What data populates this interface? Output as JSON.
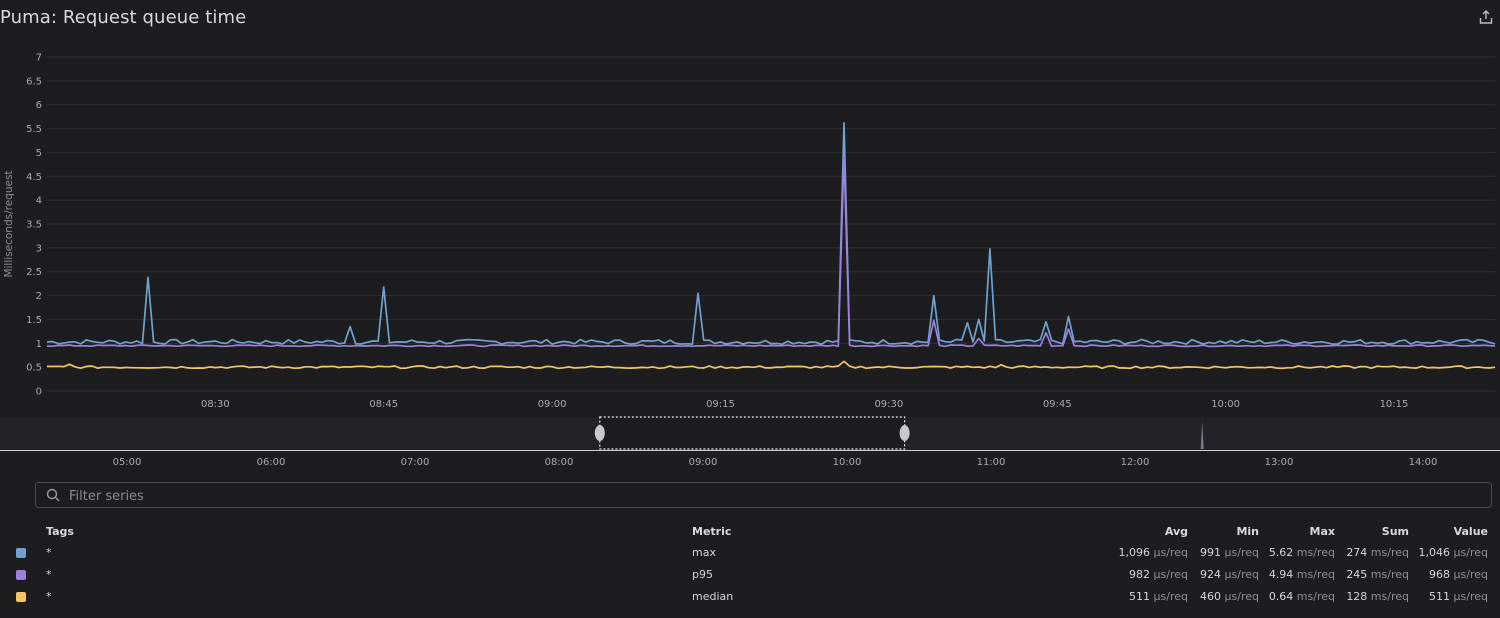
{
  "title": "Puma: Request queue time",
  "share_icon": "share-icon",
  "filter": {
    "placeholder": "Filter series",
    "value": ""
  },
  "chart_data": {
    "type": "line",
    "ylabel": "Milliseconds/request",
    "ylim": [
      0,
      7
    ],
    "y_ticks": [
      "0",
      "0.5",
      "1",
      "1.5",
      "2",
      "2.5",
      "3",
      "3.5",
      "4",
      "4.5",
      "5",
      "5.5",
      "6",
      "6.5",
      "7"
    ],
    "x_range_minutes": [
      "08:15",
      "10:24"
    ],
    "x_ticks": [
      "08:30",
      "08:45",
      "09:00",
      "09:15",
      "09:30",
      "09:45",
      "10:00",
      "10:15"
    ],
    "grid": true,
    "series": [
      {
        "name": "max",
        "color": "#6fa2d1",
        "base": 1.03,
        "jitter": 0.05,
        "spikes": [
          [
            "08:24",
            2.38
          ],
          [
            "08:42",
            1.35
          ],
          [
            "08:45",
            2.18
          ],
          [
            "09:13",
            2.05
          ],
          [
            "09:26",
            5.62
          ],
          [
            "09:34",
            2.0
          ],
          [
            "09:36",
            1.08
          ],
          [
            "09:37",
            1.43
          ],
          [
            "09:38",
            1.5
          ],
          [
            "09:39",
            2.98
          ],
          [
            "09:44",
            1.45
          ],
          [
            "09:46",
            1.56
          ]
        ]
      },
      {
        "name": "p95",
        "color": "#9d7fdc",
        "base": 0.95,
        "jitter": 0.015,
        "spikes": [
          [
            "09:26",
            4.94
          ],
          [
            "09:34",
            1.48
          ],
          [
            "09:38",
            1.1
          ],
          [
            "09:44",
            1.22
          ],
          [
            "09:46",
            1.3
          ]
        ]
      },
      {
        "name": "median",
        "color": "#f5c563",
        "base": 0.5,
        "jitter": 0.025,
        "spikes": [
          [
            "09:26",
            0.62
          ],
          [
            "08:17",
            0.56
          ],
          [
            "09:40",
            0.55
          ]
        ]
      }
    ]
  },
  "overview": {
    "x_ticks": [
      "05:00",
      "06:00",
      "07:00",
      "08:00",
      "09:00",
      "10:00",
      "11:00",
      "12:00",
      "13:00",
      "14:00"
    ],
    "selection": [
      "08:17",
      "10:24"
    ],
    "marker": "12:28"
  },
  "legend": {
    "headers": {
      "tags": "Tags",
      "metric": "Metric",
      "avg": "Avg",
      "min": "Min",
      "max": "Max",
      "sum": "Sum",
      "value": "Value"
    },
    "rows": [
      {
        "color": "#6fa2d1",
        "tags": "*",
        "metric": "max",
        "avg": "1,096",
        "avg_u": "µs/req",
        "min": "991",
        "min_u": "µs/req",
        "max": "5.62",
        "max_u": "ms/req",
        "sum": "274",
        "sum_u": "ms/req",
        "value": "1,046",
        "value_u": "µs/req"
      },
      {
        "color": "#9d7fdc",
        "tags": "*",
        "metric": "p95",
        "avg": "982",
        "avg_u": "µs/req",
        "min": "924",
        "min_u": "µs/req",
        "max": "4.94",
        "max_u": "ms/req",
        "sum": "245",
        "sum_u": "ms/req",
        "value": "968",
        "value_u": "µs/req"
      },
      {
        "color": "#f5c563",
        "tags": "*",
        "metric": "median",
        "avg": "511",
        "avg_u": "µs/req",
        "min": "460",
        "min_u": "µs/req",
        "max": "0.64",
        "max_u": "ms/req",
        "sum": "128",
        "sum_u": "ms/req",
        "value": "511",
        "value_u": "µs/req"
      }
    ]
  }
}
